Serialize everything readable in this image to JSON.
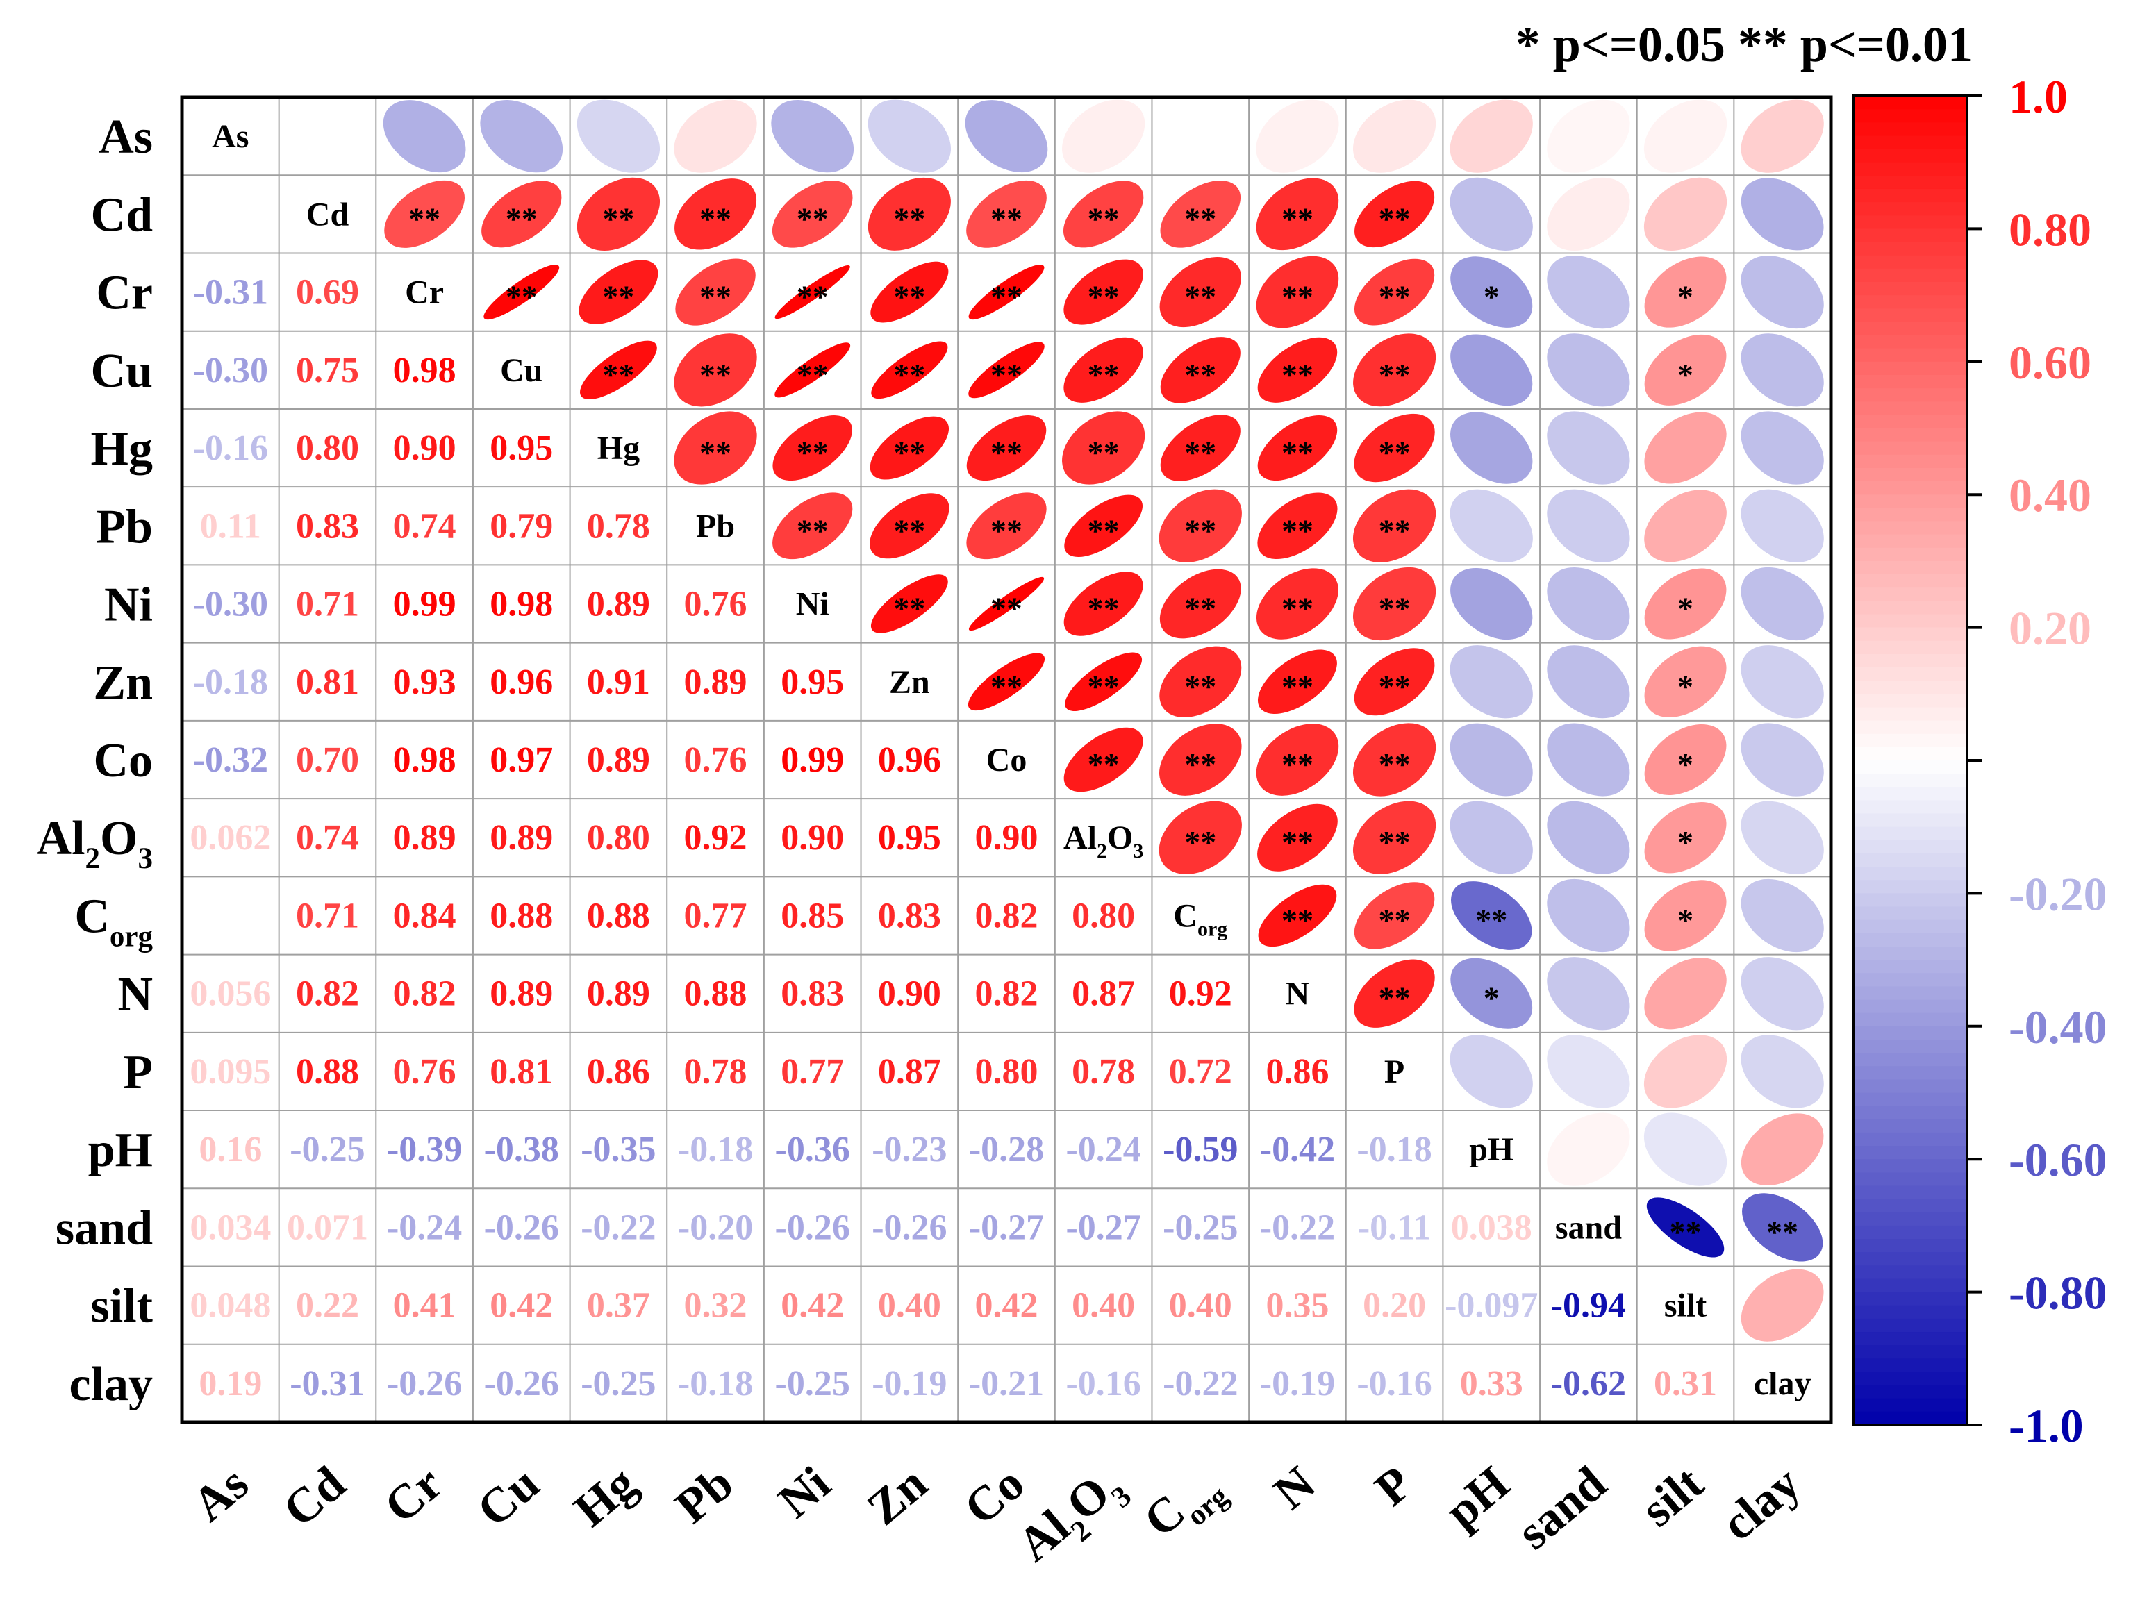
{
  "chart_data": {
    "type": "heatmap",
    "title": "",
    "variables": [
      "As",
      "Cd",
      "Cr",
      "Cu",
      "Hg",
      "Pb",
      "Ni",
      "Zn",
      "Co",
      "Al2O3",
      "Corg",
      "N",
      "P",
      "pH",
      "sand",
      "silt",
      "clay"
    ],
    "labels": [
      {
        "base": "As",
        "sub": ""
      },
      {
        "base": "Cd",
        "sub": ""
      },
      {
        "base": "Cr",
        "sub": ""
      },
      {
        "base": "Cu",
        "sub": ""
      },
      {
        "base": "Hg",
        "sub": ""
      },
      {
        "base": "Pb",
        "sub": ""
      },
      {
        "base": "Ni",
        "sub": ""
      },
      {
        "base": "Zn",
        "sub": ""
      },
      {
        "base": "Co",
        "sub": ""
      },
      {
        "base": "Al",
        "sub": "2",
        "mid": "O",
        "sub2": "3"
      },
      {
        "base": "C",
        "sub": "org"
      },
      {
        "base": "N",
        "sub": ""
      },
      {
        "base": "P",
        "sub": ""
      },
      {
        "base": "pH",
        "sub": ""
      },
      {
        "base": "sand",
        "sub": ""
      },
      {
        "base": "silt",
        "sub": ""
      },
      {
        "base": "clay",
        "sub": ""
      }
    ],
    "lower_triangle_values": [
      [],
      [
        null
      ],
      [
        -0.31,
        0.69
      ],
      [
        -0.3,
        0.75,
        0.98
      ],
      [
        -0.16,
        0.8,
        0.9,
        0.95
      ],
      [
        0.11,
        0.83,
        0.74,
        0.79,
        0.78
      ],
      [
        -0.3,
        0.71,
        0.99,
        0.98,
        0.89,
        0.76
      ],
      [
        -0.18,
        0.81,
        0.93,
        0.96,
        0.91,
        0.89,
        0.95
      ],
      [
        -0.32,
        0.7,
        0.98,
        0.97,
        0.89,
        0.76,
        0.99,
        0.96
      ],
      [
        0.062,
        0.74,
        0.89,
        0.89,
        0.8,
        0.92,
        0.9,
        0.95,
        0.9
      ],
      [
        null,
        0.71,
        0.84,
        0.88,
        0.88,
        0.77,
        0.85,
        0.83,
        0.82,
        0.8
      ],
      [
        0.056,
        0.82,
        0.82,
        0.89,
        0.89,
        0.88,
        0.83,
        0.9,
        0.82,
        0.87,
        0.92
      ],
      [
        0.095,
        0.88,
        0.76,
        0.81,
        0.86,
        0.78,
        0.77,
        0.87,
        0.8,
        0.78,
        0.72,
        0.86
      ],
      [
        0.16,
        -0.25,
        -0.39,
        -0.38,
        -0.35,
        -0.18,
        -0.36,
        -0.23,
        -0.28,
        -0.24,
        -0.59,
        -0.42,
        -0.18
      ],
      [
        0.034,
        0.071,
        -0.24,
        -0.26,
        -0.22,
        -0.2,
        -0.26,
        -0.26,
        -0.27,
        -0.27,
        -0.25,
        -0.22,
        -0.11,
        0.038
      ],
      [
        0.048,
        0.22,
        0.41,
        0.42,
        0.37,
        0.32,
        0.42,
        0.4,
        0.42,
        0.4,
        0.4,
        0.35,
        0.2,
        -0.097,
        -0.94
      ],
      [
        0.19,
        -0.31,
        -0.26,
        -0.26,
        -0.25,
        -0.18,
        -0.25,
        -0.19,
        -0.21,
        -0.16,
        -0.22,
        -0.19,
        -0.16,
        0.33,
        -0.62,
        0.31
      ]
    ],
    "lower_triangle_text": [
      [],
      [
        ""
      ],
      [
        "-0.31",
        "0.69"
      ],
      [
        "-0.30",
        "0.75",
        "0.98"
      ],
      [
        "-0.16",
        "0.80",
        "0.90",
        "0.95"
      ],
      [
        "0.11",
        "0.83",
        "0.74",
        "0.79",
        "0.78"
      ],
      [
        "-0.30",
        "0.71",
        "0.99",
        "0.98",
        "0.89",
        "0.76"
      ],
      [
        "-0.18",
        "0.81",
        "0.93",
        "0.96",
        "0.91",
        "0.89",
        "0.95"
      ],
      [
        "-0.32",
        "0.70",
        "0.98",
        "0.97",
        "0.89",
        "0.76",
        "0.99",
        "0.96"
      ],
      [
        "0.062",
        "0.74",
        "0.89",
        "0.89",
        "0.80",
        "0.92",
        "0.90",
        "0.95",
        "0.90"
      ],
      [
        "",
        "0.71",
        "0.84",
        "0.88",
        "0.88",
        "0.77",
        "0.85",
        "0.83",
        "0.82",
        "0.80"
      ],
      [
        "0.056",
        "0.82",
        "0.82",
        "0.89",
        "0.89",
        "0.88",
        "0.83",
        "0.90",
        "0.82",
        "0.87",
        "0.92"
      ],
      [
        "0.095",
        "0.88",
        "0.76",
        "0.81",
        "0.86",
        "0.78",
        "0.77",
        "0.87",
        "0.80",
        "0.78",
        "0.72",
        "0.86"
      ],
      [
        "0.16",
        "-0.25",
        "-0.39",
        "-0.38",
        "-0.35",
        "-0.18",
        "-0.36",
        "-0.23",
        "-0.28",
        "-0.24",
        "-0.59",
        "-0.42",
        "-0.18"
      ],
      [
        "0.034",
        "0.071",
        "-0.24",
        "-0.26",
        "-0.22",
        "-0.20",
        "-0.26",
        "-0.26",
        "-0.27",
        "-0.27",
        "-0.25",
        "-0.22",
        "-0.11",
        "0.038"
      ],
      [
        "0.048",
        "0.22",
        "0.41",
        "0.42",
        "0.37",
        "0.32",
        "0.42",
        "0.40",
        "0.42",
        "0.40",
        "0.40",
        "0.35",
        "0.20",
        "-0.097",
        "-0.94"
      ],
      [
        "0.19",
        "-0.31",
        "-0.26",
        "-0.26",
        "-0.25",
        "-0.18",
        "-0.25",
        "-0.19",
        "-0.21",
        "-0.16",
        "-0.22",
        "-0.19",
        "-0.16",
        "0.33",
        "-0.62",
        "0.31"
      ]
    ],
    "significance_upper": {
      "1": {
        "2": "**",
        "3": "**",
        "4": "**",
        "5": "**",
        "6": "**",
        "7": "**",
        "8": "**",
        "9": "**",
        "10": "**",
        "11": "**",
        "12": "**"
      },
      "2": {
        "3": "**",
        "4": "**",
        "5": "**",
        "6": "**",
        "7": "**",
        "8": "**",
        "9": "**",
        "10": "**",
        "11": "**",
        "12": "**",
        "13": "*",
        "15": "*"
      },
      "3": {
        "4": "**",
        "5": "**",
        "6": "**",
        "7": "**",
        "8": "**",
        "9": "**",
        "10": "**",
        "11": "**",
        "12": "**",
        "15": "*"
      },
      "4": {
        "5": "**",
        "6": "**",
        "7": "**",
        "8": "**",
        "9": "**",
        "10": "**",
        "11": "**",
        "12": "**"
      },
      "5": {
        "6": "**",
        "7": "**",
        "8": "**",
        "9": "**",
        "10": "**",
        "11": "**",
        "12": "**"
      },
      "6": {
        "7": "**",
        "8": "**",
        "9": "**",
        "10": "**",
        "11": "**",
        "12": "**",
        "15": "*"
      },
      "7": {
        "8": "**",
        "9": "**",
        "10": "**",
        "11": "**",
        "12": "**",
        "15": "*"
      },
      "8": {
        "9": "**",
        "10": "**",
        "11": "**",
        "12": "**",
        "15": "*"
      },
      "9": {
        "10": "**",
        "11": "**",
        "12": "**",
        "15": "*"
      },
      "10": {
        "11": "**",
        "12": "**",
        "13": "**",
        "15": "*"
      },
      "11": {
        "12": "**",
        "13": "*"
      },
      "14": {
        "15": "**",
        "16": "**"
      }
    },
    "legend_title": "* p<=0.05  ** p<=0.01",
    "colorbar": {
      "min": -1.0,
      "max": 1.0,
      "ticks": [
        1.0,
        0.8,
        0.6,
        0.4,
        0.2,
        -0.2,
        -0.4,
        -0.6,
        -0.8,
        -1.0
      ],
      "tick_labels": [
        "1.0",
        "0.80",
        "0.60",
        "0.40",
        "0.20",
        "-0.20",
        "-0.40",
        "-0.60",
        "-0.80",
        "-1.0"
      ],
      "positive_color": "#ff0000",
      "negative_color": "#0000aa"
    }
  }
}
